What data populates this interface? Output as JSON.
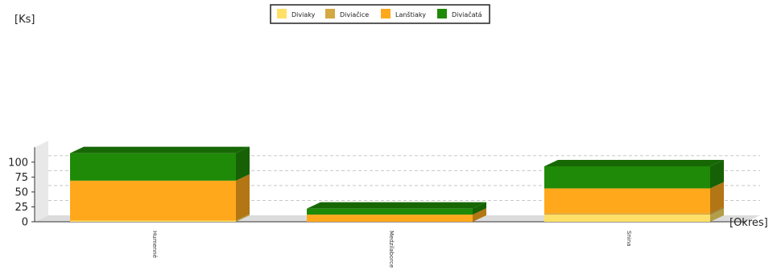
{
  "chart_data": {
    "type": "bar",
    "stacked": true,
    "style": "3d",
    "categories": [
      "Humenné",
      "Medzilaborce",
      "Snina"
    ],
    "series": [
      {
        "name": "Diviaky",
        "color": "#FFE066",
        "values": [
          2,
          0,
          12
        ]
      },
      {
        "name": "Diviačice",
        "color": "#D4A843",
        "values": [
          0,
          0,
          2
        ]
      },
      {
        "name": "Lanštiaky",
        "color": "#FFA81C",
        "values": [
          67,
          12,
          42
        ]
      },
      {
        "name": "Diviačatá",
        "color": "#1F8A07",
        "values": [
          46,
          10,
          37
        ]
      }
    ],
    "ylabel": "[Ks]",
    "xlabel": "[Okres]",
    "ylim": [
      0,
      125
    ],
    "yticks": [
      0,
      25,
      50,
      75,
      100
    ],
    "grid": true,
    "legend_position": "top-center"
  }
}
